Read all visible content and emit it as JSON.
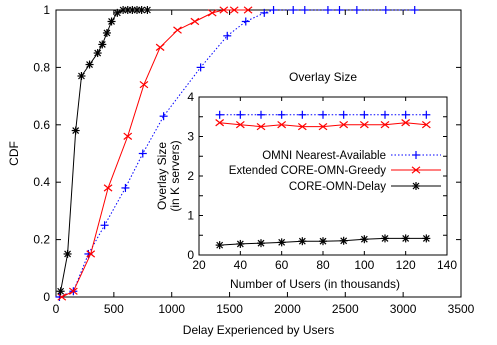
{
  "chart_data": [
    {
      "type": "line",
      "xlabel": "Delay Experienced by Users",
      "ylabel": "CDF",
      "xlim": [
        0,
        3500
      ],
      "ylim": [
        0,
        1
      ],
      "xticks": [
        "0",
        "500",
        "1000",
        "1500",
        "2000",
        "2500",
        "3000",
        "3500"
      ],
      "yticks": [
        "0",
        "0.2",
        "0.4",
        "0.6",
        "0.8",
        "1"
      ],
      "grid": false,
      "series": [
        {
          "name": "OMNI Nearest-Available",
          "color": "#0000ff",
          "line": "dotted",
          "marker": "plus",
          "x": [
            30,
            150,
            280,
            420,
            600,
            750,
            930,
            1250,
            1480,
            1640,
            1800,
            1880,
            2050,
            2150,
            2350,
            2450,
            2600,
            2850,
            3100
          ],
          "y": [
            0.0,
            0.02,
            0.15,
            0.25,
            0.38,
            0.5,
            0.63,
            0.8,
            0.91,
            0.96,
            0.99,
            1.0,
            1.0,
            1.0,
            1.0,
            1.0,
            1.0,
            1.0,
            1.0
          ]
        },
        {
          "name": "Extended CORE-OMN-Greedy",
          "color": "#ff0000",
          "line": "solid",
          "marker": "x",
          "x": [
            50,
            150,
            300,
            450,
            620,
            760,
            900,
            1050,
            1200,
            1350,
            1450,
            1540,
            1660
          ],
          "y": [
            0.0,
            0.02,
            0.15,
            0.38,
            0.56,
            0.74,
            0.87,
            0.93,
            0.96,
            0.99,
            1.0,
            1.0,
            1.0
          ]
        },
        {
          "name": "CORE-OMN-Delay",
          "color": "#000000",
          "line": "solid",
          "marker": "star",
          "x": [
            40,
            100,
            170,
            220,
            290,
            360,
            400,
            440,
            480,
            530,
            580,
            620,
            660,
            700,
            740,
            790
          ],
          "y": [
            0.02,
            0.15,
            0.58,
            0.77,
            0.81,
            0.85,
            0.88,
            0.92,
            0.96,
            0.99,
            1.0,
            1.0,
            1.0,
            1.0,
            1.0,
            1.0
          ]
        }
      ]
    },
    {
      "type": "line",
      "title": "Overlay Size",
      "xlabel": "Number of Users (in thousands)",
      "ylabel": "Overlay Size\n(in K servers)",
      "xlim": [
        20,
        140
      ],
      "ylim": [
        0,
        4
      ],
      "xticks": [
        "20",
        "40",
        "60",
        "80",
        "100",
        "120",
        "140"
      ],
      "yticks": [
        "0",
        "0.5",
        "1",
        "1.5",
        "2",
        "2.5",
        "3",
        "3.5",
        "4"
      ],
      "series": [
        {
          "name": "OMNI Nearest-Available",
          "color": "#0000ff",
          "x": [
            30,
            40,
            50,
            60,
            70,
            80,
            90,
            100,
            110,
            120,
            130
          ],
          "y": [
            3.55,
            3.55,
            3.55,
            3.55,
            3.55,
            3.55,
            3.55,
            3.55,
            3.55,
            3.55,
            3.55
          ]
        },
        {
          "name": "Extended CORE-OMN-Greedy",
          "color": "#ff0000",
          "x": [
            30,
            40,
            50,
            60,
            70,
            80,
            90,
            100,
            110,
            120,
            130
          ],
          "y": [
            3.35,
            3.3,
            3.25,
            3.3,
            3.25,
            3.25,
            3.3,
            3.3,
            3.3,
            3.35,
            3.3
          ]
        },
        {
          "name": "CORE-OMN-Delay",
          "color": "#000000",
          "x": [
            30,
            40,
            50,
            60,
            70,
            80,
            90,
            100,
            110,
            120,
            130
          ],
          "y": [
            0.25,
            0.28,
            0.3,
            0.32,
            0.35,
            0.35,
            0.36,
            0.4,
            0.42,
            0.42,
            0.42
          ]
        }
      ]
    }
  ]
}
